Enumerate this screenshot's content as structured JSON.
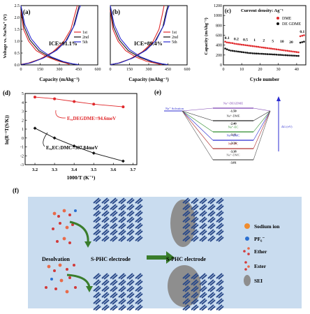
{
  "panels": {
    "a": {
      "label": "(a)",
      "ylabel": "Voltage vs. Na/Na⁺ (V)",
      "xlabel": "Capacity (mAhg⁻¹)",
      "yticks": [
        "0.0",
        "0.5",
        "1.0",
        "1.5",
        "2.0",
        "2.5"
      ],
      "xticks": [
        "0",
        "150",
        "300",
        "450",
        "600"
      ],
      "legend": [
        "1st",
        "2nd",
        "5th"
      ],
      "annotation": "ICE=91.1%"
    },
    "b": {
      "label": "(b)",
      "xlabel": "Capacity (mAhg⁻¹)",
      "xticks": [
        "0",
        "150",
        "300",
        "450",
        "600"
      ],
      "legend": [
        "1st",
        "2nd",
        "5th"
      ],
      "annotation": "ICE=89.4%"
    },
    "c": {
      "label": "(c)",
      "ylabel": "Capacity (mAhg⁻¹)",
      "xlabel": "Cycle number",
      "yticks": [
        "0",
        "200",
        "400",
        "600",
        "800",
        "1000",
        "1200"
      ],
      "xticks": [
        "0",
        "10",
        "20",
        "30",
        "40"
      ],
      "header": "Current density: Ag⁻¹",
      "legend": [
        "DME",
        "DE GDME"
      ],
      "rates": [
        "0.1",
        "0.2",
        "0.5",
        "1",
        "2",
        "5",
        "10",
        "20",
        "0.1"
      ]
    },
    "d": {
      "label": "(d)",
      "ylabel": "ln(R⁻¹T(S/K))",
      "xlabel": "1000/T (K⁻¹)",
      "yticks": [
        "-3",
        "-2",
        "-1",
        "0",
        "1",
        "2",
        "3",
        "4",
        "5"
      ],
      "xticks": [
        "3.2",
        "3.3",
        "3.4",
        "3.5",
        "3.6",
        "3.7"
      ],
      "annotation_red": "Eₐ,DEGDME=94.6meV",
      "annotation_black": "Eₐ,EC:DMC=307.84meV"
    },
    "e": {
      "label": "(e)",
      "solvation_label": "Na⁺ Solvation",
      "delta_g_label": "ΔG (eV)",
      "levels": [
        {
          "name": "Na⁺-DEGDME",
          "value": "-1.50"
        },
        {
          "name": "Na⁺-DME",
          "value": "-2.40"
        },
        {
          "name": "Na⁺-EC",
          "value": "-3.11"
        },
        {
          "name": "Na⁺-EMC",
          "value": "-3.24"
        },
        {
          "name": "Na⁺-PC",
          "value": "-3.38"
        },
        {
          "name": "Na⁺-DMC",
          "value": "-3.81"
        }
      ]
    },
    "f": {
      "label": "(f)",
      "desolvation": "Desolvation",
      "electrode_left": "S-PHC electrode",
      "electrode_right": "S-PHC electrode",
      "legend": [
        "Sodium ion",
        "PF₆⁻",
        "Ether",
        "Ester",
        "SEI"
      ]
    }
  },
  "chart_data": [
    {
      "type": "line",
      "panel": "a",
      "xlabel": "Capacity (mAhg⁻¹)",
      "ylabel": "Voltage vs. Na/Na⁺ (V)",
      "xlim": [
        0,
        600
      ],
      "ylim": [
        0,
        2.5
      ],
      "series": [
        {
          "name": "1st",
          "color": "#e0282b",
          "discharge": [
            [
              0,
              2.3
            ],
            [
              20,
              1.5
            ],
            [
              60,
              1.0
            ],
            [
              120,
              0.6
            ],
            [
              200,
              0.35
            ],
            [
              280,
              0.18
            ],
            [
              350,
              0.08
            ],
            [
              380,
              0.02
            ]
          ],
          "charge": [
            [
              0,
              0.02
            ],
            [
              60,
              0.08
            ],
            [
              150,
              0.25
            ],
            [
              250,
              0.55
            ],
            [
              330,
              0.95
            ],
            [
              390,
              1.5
            ],
            [
              420,
              2.1
            ],
            [
              440,
              2.5
            ]
          ]
        },
        {
          "name": "2nd",
          "color": "#111111",
          "discharge": [
            [
              0,
              2.4
            ],
            [
              25,
              1.6
            ],
            [
              70,
              1.05
            ],
            [
              140,
              0.6
            ],
            [
              230,
              0.32
            ],
            [
              320,
              0.14
            ],
            [
              400,
              0.04
            ],
            [
              445,
              0.01
            ]
          ],
          "charge": [
            [
              0,
              0.01
            ],
            [
              70,
              0.08
            ],
            [
              170,
              0.28
            ],
            [
              270,
              0.6
            ],
            [
              350,
              1.0
            ],
            [
              410,
              1.6
            ],
            [
              440,
              2.2
            ],
            [
              455,
              2.5
            ]
          ]
        },
        {
          "name": "5th",
          "color": "#2b2bd0",
          "discharge": [
            [
              0,
              2.5
            ],
            [
              30,
              1.7
            ],
            [
              80,
              1.1
            ],
            [
              150,
              0.65
            ],
            [
              240,
              0.33
            ],
            [
              330,
              0.14
            ],
            [
              410,
              0.04
            ],
            [
              455,
              0.01
            ]
          ],
          "charge": [
            [
              0,
              0.01
            ],
            [
              80,
              0.09
            ],
            [
              180,
              0.3
            ],
            [
              280,
              0.62
            ],
            [
              360,
              1.05
            ],
            [
              420,
              1.7
            ],
            [
              450,
              2.3
            ],
            [
              465,
              2.5
            ]
          ]
        }
      ]
    },
    {
      "type": "line",
      "panel": "b",
      "xlabel": "Capacity (mAhg⁻¹)",
      "xlim": [
        0,
        600
      ],
      "ylim": [
        0,
        2.5
      ],
      "series": [
        {
          "name": "1st",
          "color": "#e0282b",
          "discharge": [
            [
              0,
              2.3
            ],
            [
              20,
              1.5
            ],
            [
              60,
              1.0
            ],
            [
              120,
              0.6
            ],
            [
              200,
              0.33
            ],
            [
              280,
              0.16
            ],
            [
              360,
              0.06
            ],
            [
              400,
              0.01
            ]
          ],
          "charge": [
            [
              0,
              0.01
            ],
            [
              60,
              0.07
            ],
            [
              150,
              0.24
            ],
            [
              250,
              0.55
            ],
            [
              330,
              0.95
            ],
            [
              380,
              1.5
            ],
            [
              405,
              2.1
            ],
            [
              420,
              2.5
            ]
          ]
        },
        {
          "name": "2nd",
          "color": "#111111",
          "discharge": [
            [
              0,
              2.4
            ],
            [
              25,
              1.6
            ],
            [
              70,
              1.05
            ],
            [
              140,
              0.6
            ],
            [
              230,
              0.32
            ],
            [
              320,
              0.14
            ],
            [
              400,
              0.04
            ],
            [
              440,
              0.01
            ]
          ],
          "charge": [
            [
              0,
              0.01
            ],
            [
              70,
              0.08
            ],
            [
              170,
              0.28
            ],
            [
              270,
              0.6
            ],
            [
              350,
              1.0
            ],
            [
              410,
              1.6
            ],
            [
              435,
              2.2
            ],
            [
              450,
              2.5
            ]
          ]
        },
        {
          "name": "5th",
          "color": "#2b2bd0",
          "discharge": [
            [
              0,
              2.5
            ],
            [
              30,
              1.7
            ],
            [
              80,
              1.1
            ],
            [
              150,
              0.65
            ],
            [
              240,
              0.33
            ],
            [
              330,
              0.14
            ],
            [
              410,
              0.04
            ],
            [
              450,
              0.01
            ]
          ],
          "charge": [
            [
              0,
              0.01
            ],
            [
              80,
              0.09
            ],
            [
              180,
              0.3
            ],
            [
              280,
              0.62
            ],
            [
              360,
              1.05
            ],
            [
              420,
              1.7
            ],
            [
              445,
              2.3
            ],
            [
              460,
              2.5
            ]
          ]
        }
      ]
    },
    {
      "type": "scatter",
      "panel": "c",
      "xlabel": "Cycle number",
      "ylabel": "Capacity (mAhg⁻¹)",
      "xlim": [
        0,
        45
      ],
      "ylim": [
        0,
        1200
      ],
      "series": [
        {
          "name": "DME",
          "color": "#e0282b",
          "values": [
            470,
            455,
            450,
            445,
            440,
            430,
            425,
            420,
            415,
            410,
            405,
            400,
            395,
            390,
            385,
            380,
            375,
            370,
            365,
            360,
            355,
            350,
            345,
            340,
            335,
            330,
            325,
            320,
            315,
            310,
            305,
            300,
            295,
            290,
            285,
            280,
            275,
            270,
            265,
            260,
            255,
            580,
            590,
            600
          ]
        },
        {
          "name": "DE GDME",
          "color": "#111111",
          "values": [
            330,
            315,
            300,
            290,
            285,
            280,
            275,
            270,
            265,
            260,
            255,
            250,
            245,
            240,
            238,
            235,
            232,
            230,
            228,
            226,
            224,
            222,
            220,
            218,
            216,
            214,
            212,
            210,
            208,
            205,
            203,
            200,
            198,
            196,
            194,
            192,
            190,
            188,
            186,
            184,
            182,
            450,
            460,
            470
          ]
        }
      ]
    },
    {
      "type": "scatter",
      "panel": "d",
      "xlabel": "1000/T (K⁻¹)",
      "ylabel": "ln(R⁻¹T(S/K))",
      "xlim": [
        3.15,
        3.72
      ],
      "ylim": [
        -3,
        5
      ],
      "series": [
        {
          "name": "DEGDME",
          "color": "#e0282b",
          "x": [
            3.2,
            3.3,
            3.4,
            3.5,
            3.65
          ],
          "values": [
            4.6,
            4.4,
            4.1,
            3.8,
            3.5
          ]
        },
        {
          "name": "EC:DMC",
          "color": "#111111",
          "x": [
            3.2,
            3.3,
            3.4,
            3.5,
            3.65
          ],
          "values": [
            1.1,
            0.0,
            -0.9,
            -1.7,
            -2.6
          ]
        }
      ]
    }
  ]
}
